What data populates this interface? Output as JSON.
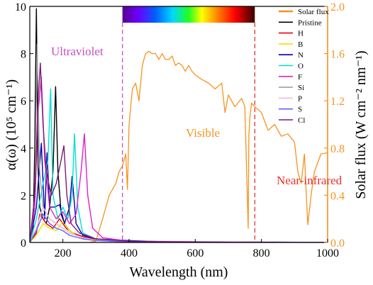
{
  "chart_data": {
    "type": "line",
    "xlabel": "Wavelength (nm)",
    "ylabel_left": "α(ω) (10⁵ cm⁻¹)",
    "ylabel_right": "Solar flux (W cm⁻² nm⁻¹)",
    "xlim": [
      100,
      1000
    ],
    "ylim_left": [
      0,
      10
    ],
    "ylim_right": [
      0,
      2.0
    ],
    "x_ticks": [
      "200",
      "400",
      "600",
      "800",
      "1000"
    ],
    "y_ticks_left": [
      "0",
      "2",
      "4",
      "6",
      "8",
      "10"
    ],
    "y_ticks_right": [
      "0.0",
      "0.4",
      "0.8",
      "1.2",
      "1.6",
      "2.0"
    ],
    "grid": false,
    "legend_position": "top-right",
    "annotations": {
      "uv": "Ultraviolet",
      "visible": "Visible",
      "nir": "Near-infrared"
    },
    "region_boundaries_nm": [
      380,
      780
    ],
    "colors": {
      "solar": "#F7931E",
      "uv_text": "#C64FC4",
      "nir_text": "#E8302D",
      "boundary_uv": "#C64FC4",
      "boundary_nir": "#E8302D",
      "right_axis": "#F7931E"
    },
    "solar_series": {
      "name": "Solar flux",
      "axis": "right",
      "color": "#F7931E",
      "x": [
        280,
        300,
        320,
        340,
        360,
        370,
        380,
        390,
        395,
        400,
        410,
        420,
        430,
        440,
        450,
        460,
        470,
        480,
        490,
        500,
        510,
        520,
        530,
        540,
        550,
        560,
        570,
        580,
        590,
        600,
        620,
        640,
        660,
        680,
        690,
        700,
        720,
        740,
        750,
        760,
        762,
        765,
        770,
        780,
        800,
        820,
        840,
        860,
        880,
        900,
        910,
        920,
        930,
        940,
        950,
        960,
        980,
        1000
      ],
      "y": [
        0.0,
        0.01,
        0.2,
        0.4,
        0.5,
        0.6,
        0.65,
        0.75,
        0.45,
        1.0,
        1.3,
        1.35,
        1.2,
        1.5,
        1.6,
        1.62,
        1.6,
        1.6,
        1.55,
        1.6,
        1.55,
        1.55,
        1.58,
        1.5,
        1.52,
        1.5,
        1.45,
        1.5,
        1.45,
        1.42,
        1.38,
        1.35,
        1.3,
        1.35,
        1.1,
        1.25,
        1.15,
        1.22,
        1.15,
        0.12,
        0.9,
        1.05,
        1.18,
        1.15,
        1.1,
        0.95,
        1.0,
        0.9,
        0.92,
        0.85,
        0.6,
        0.5,
        0.75,
        0.15,
        0.4,
        0.6,
        0.75,
        0.76
      ]
    },
    "series": [
      {
        "name": "Pristine",
        "color": "#000000",
        "x": [
          100,
          110,
          115,
          120,
          125,
          130,
          140,
          150,
          160,
          170,
          178,
          185,
          195,
          205,
          220,
          240,
          260,
          300,
          350,
          450,
          600,
          800,
          1000
        ],
        "y": [
          0.0,
          0.5,
          4.0,
          9.9,
          3.2,
          1.5,
          1.0,
          0.8,
          1.5,
          3.0,
          6.6,
          3.0,
          1.2,
          0.8,
          0.5,
          0.3,
          0.2,
          0.1,
          0.05,
          0.02,
          0.01,
          0.0,
          0.0
        ]
      },
      {
        "name": "H",
        "color": "#E8000B",
        "x": [
          100,
          120,
          130,
          150,
          170,
          190,
          210,
          230,
          260,
          300,
          400,
          600,
          1000
        ],
        "y": [
          0.0,
          0.4,
          1.2,
          0.8,
          0.6,
          1.0,
          0.6,
          0.4,
          0.25,
          0.12,
          0.05,
          0.01,
          0.0
        ]
      },
      {
        "name": "B",
        "color": "#E6E600",
        "x": [
          100,
          120,
          140,
          160,
          180,
          200,
          220,
          240,
          260,
          300,
          400,
          1000
        ],
        "y": [
          0.0,
          0.3,
          0.8,
          0.6,
          0.5,
          0.9,
          0.5,
          0.3,
          0.2,
          0.1,
          0.03,
          0.0
        ]
      },
      {
        "name": "N",
        "color": "#0000B0",
        "x": [
          100,
          120,
          135,
          145,
          152,
          160,
          175,
          190,
          205,
          220,
          228,
          240,
          260,
          300,
          400,
          500,
          1000
        ],
        "y": [
          0.0,
          1.5,
          4.2,
          1.0,
          3.8,
          1.5,
          1.5,
          1.6,
          0.8,
          1.5,
          2.8,
          0.8,
          0.3,
          0.15,
          0.08,
          0.03,
          0.0
        ]
      },
      {
        "name": "O",
        "color": "#00E0D0",
        "x": [
          100,
          120,
          140,
          155,
          163,
          170,
          185,
          200,
          215,
          228,
          235,
          245,
          260,
          300,
          400,
          1000
        ],
        "y": [
          0.0,
          1.0,
          2.5,
          3.5,
          6.5,
          2.0,
          1.0,
          1.5,
          1.0,
          2.0,
          4.6,
          1.5,
          0.4,
          0.15,
          0.05,
          0.0
        ]
      },
      {
        "name": "F",
        "color": "#E020C8",
        "x": [
          100,
          115,
          125,
          135,
          145,
          160,
          180,
          200,
          220,
          240,
          255,
          265,
          275,
          290,
          320,
          400,
          1000
        ],
        "y": [
          0.0,
          1.5,
          5.5,
          7.0,
          3.5,
          1.5,
          1.0,
          1.3,
          0.8,
          1.2,
          3.0,
          4.6,
          2.0,
          0.6,
          0.2,
          0.05,
          0.0
        ]
      },
      {
        "name": "Si",
        "color": "#A0A0A0",
        "x": [
          100,
          115,
          122,
          130,
          140,
          160,
          180,
          200,
          220,
          260,
          300,
          400,
          1000
        ],
        "y": [
          0.0,
          2.0,
          8.4,
          3.0,
          1.5,
          1.0,
          0.8,
          0.6,
          0.4,
          0.2,
          0.1,
          0.03,
          0.0
        ]
      },
      {
        "name": "P",
        "color": "#F8B8D8",
        "x": [
          100,
          120,
          140,
          160,
          180,
          200,
          220,
          260,
          300,
          400,
          1000
        ],
        "y": [
          0.0,
          0.6,
          1.5,
          1.0,
          0.8,
          0.6,
          0.4,
          0.2,
          0.1,
          0.03,
          0.0
        ]
      },
      {
        "name": "S",
        "color": "#6060FF",
        "x": [
          100,
          120,
          140,
          160,
          180,
          200,
          220,
          260,
          300,
          400,
          1000
        ],
        "y": [
          0.0,
          0.5,
          1.2,
          0.8,
          0.6,
          0.5,
          0.3,
          0.15,
          0.08,
          0.02,
          0.0
        ]
      },
      {
        "name": "Cl",
        "color": "#7A1A7A",
        "x": [
          100,
          115,
          125,
          132,
          140,
          150,
          165,
          180,
          195,
          203,
          212,
          225,
          250,
          300,
          400,
          600,
          1000
        ],
        "y": [
          0.0,
          2.0,
          6.0,
          7.6,
          5.0,
          3.0,
          2.0,
          2.5,
          3.5,
          4.1,
          2.0,
          0.8,
          0.4,
          0.15,
          0.05,
          0.01,
          0.0
        ]
      }
    ]
  }
}
